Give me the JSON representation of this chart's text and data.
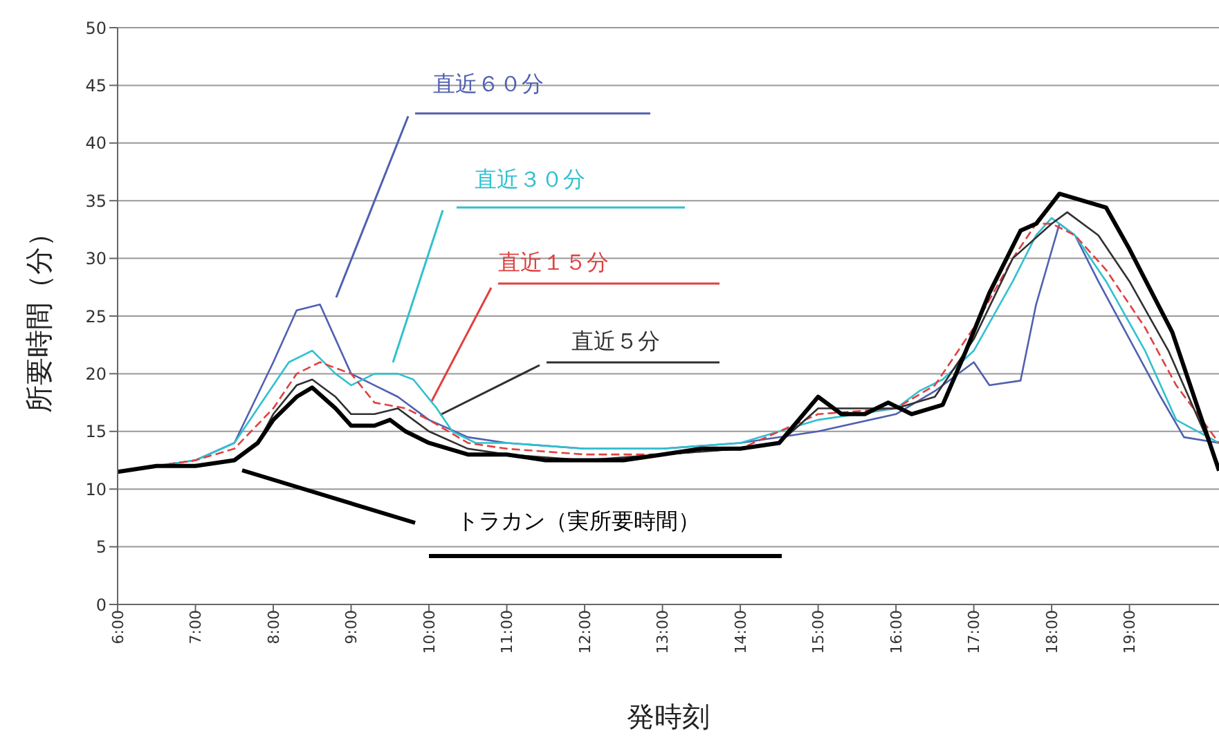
{
  "chart_data": {
    "type": "line",
    "xlabel": "発時刻",
    "ylabel": "所要時間（分）",
    "xlim": [
      6,
      20.15
    ],
    "ylim": [
      0,
      50
    ],
    "xticks": [
      {
        "value": 6,
        "label": "6:00"
      },
      {
        "value": 7,
        "label": "7:00"
      },
      {
        "value": 8,
        "label": "8:00"
      },
      {
        "value": 9,
        "label": "9:00"
      },
      {
        "value": 10,
        "label": "10:00"
      },
      {
        "value": 11,
        "label": "11:00"
      },
      {
        "value": 12,
        "label": "12:00"
      },
      {
        "value": 13,
        "label": "13:00"
      },
      {
        "value": 14,
        "label": "14:00"
      },
      {
        "value": 15,
        "label": "15:00"
      },
      {
        "value": 16,
        "label": "16:00"
      },
      {
        "value": 17,
        "label": "17:00"
      },
      {
        "value": 18,
        "label": "18:00"
      },
      {
        "value": 19,
        "label": "19:00"
      }
    ],
    "yticks": [
      0,
      5,
      10,
      15,
      20,
      25,
      30,
      35,
      40,
      45,
      50
    ],
    "grid": "y",
    "legend": false,
    "marker": "none",
    "series": [
      {
        "name": "直近６０分",
        "color": "#5060b0",
        "line_style": "solid",
        "x": [
          6,
          6.5,
          7,
          7.5,
          8,
          8.3,
          8.6,
          8.8,
          9,
          9.3,
          9.6,
          10,
          10.5,
          11,
          12,
          13,
          14,
          15,
          16,
          16.5,
          17,
          17.2,
          17.6,
          17.8,
          18.1,
          18.3,
          18.6,
          19,
          19.4,
          19.7,
          20.15
        ],
        "values": [
          11.5,
          12,
          12.5,
          14,
          21,
          25.5,
          26,
          23,
          20,
          19,
          18,
          16,
          14.5,
          14,
          13.5,
          13.5,
          14,
          15,
          16.5,
          18.5,
          21,
          19,
          19.4,
          26,
          33,
          32,
          28,
          23,
          18,
          14.5,
          14
        ]
      },
      {
        "name": "直近３０分",
        "color": "#30c0d0",
        "line_style": "solid",
        "x": [
          6,
          6.5,
          7,
          7.5,
          8,
          8.2,
          8.5,
          8.8,
          9,
          9.3,
          9.6,
          9.8,
          10.1,
          10.3,
          10.6,
          11,
          12,
          13,
          14,
          15,
          16,
          16.3,
          16.6,
          17,
          17.5,
          17.8,
          18,
          18.3,
          18.7,
          19.2,
          19.6,
          20.15
        ],
        "values": [
          11.5,
          12,
          12.5,
          14,
          19,
          21,
          22,
          20,
          19,
          20,
          20,
          19.5,
          17,
          15,
          14,
          14,
          13.5,
          13.5,
          14,
          16,
          17,
          18.5,
          19.5,
          22,
          28,
          32,
          33.5,
          32,
          28,
          22,
          16,
          14
        ]
      },
      {
        "name": "直近１５分",
        "color": "#e04040",
        "line_style": "dashed",
        "x": [
          6,
          6.5,
          7,
          7.5,
          8,
          8.3,
          8.6,
          9,
          9.3,
          9.7,
          10,
          10.5,
          11,
          12,
          13,
          14,
          15,
          16,
          16.5,
          17,
          17.5,
          17.8,
          18,
          18.3,
          18.7,
          19.2,
          19.6,
          20.15
        ],
        "values": [
          11.5,
          12,
          12.5,
          13.5,
          17,
          20,
          21,
          20,
          17.5,
          17,
          16,
          14,
          13.5,
          13,
          13,
          13.5,
          16.5,
          17,
          19,
          24,
          30,
          33,
          33,
          32,
          29,
          24,
          19,
          14
        ]
      },
      {
        "name": "直近５分",
        "color": "#303030",
        "line_style": "solid",
        "x": [
          6,
          6.5,
          7,
          7.5,
          7.8,
          8,
          8.3,
          8.5,
          8.8,
          9,
          9.3,
          9.6,
          9.8,
          10,
          10.5,
          11,
          12,
          13,
          14,
          14.5,
          15,
          15.5,
          16,
          16.5,
          17,
          17.5,
          18,
          18.2,
          18.6,
          19,
          19.5,
          20.15
        ],
        "values": [
          11.5,
          12,
          12,
          12.5,
          14,
          16.5,
          19,
          19.5,
          18,
          16.5,
          16.5,
          17,
          16,
          15,
          13.5,
          13,
          12.5,
          13,
          13.5,
          14,
          17,
          17,
          17,
          18,
          23,
          30,
          33,
          34,
          32,
          28,
          22,
          12
        ]
      },
      {
        "name": "トラカン（実所要時間）",
        "color": "#000000",
        "line_style": "solid",
        "x": [
          6,
          6.5,
          7,
          7.5,
          7.8,
          8,
          8.3,
          8.5,
          8.8,
          9,
          9.3,
          9.5,
          9.7,
          10,
          10.5,
          11,
          11.5,
          12,
          12.5,
          13,
          13.5,
          14,
          14.5,
          15,
          15.3,
          15.6,
          15.9,
          16.2,
          16.6,
          16.9,
          17.2,
          17.6,
          17.8,
          18.1,
          18.4,
          18.7,
          19,
          19.55,
          20.15
        ],
        "values": [
          11.5,
          12,
          12,
          12.5,
          14,
          16,
          18,
          18.8,
          17,
          15.5,
          15.5,
          16,
          15,
          14,
          13,
          13,
          12.5,
          12.5,
          12.5,
          13,
          13.5,
          13.5,
          14,
          18,
          16.5,
          16.5,
          17.5,
          16.5,
          17.3,
          22,
          27,
          32.4,
          33,
          35.6,
          35,
          34.4,
          30.8,
          23.6,
          11.6
        ]
      }
    ]
  }
}
